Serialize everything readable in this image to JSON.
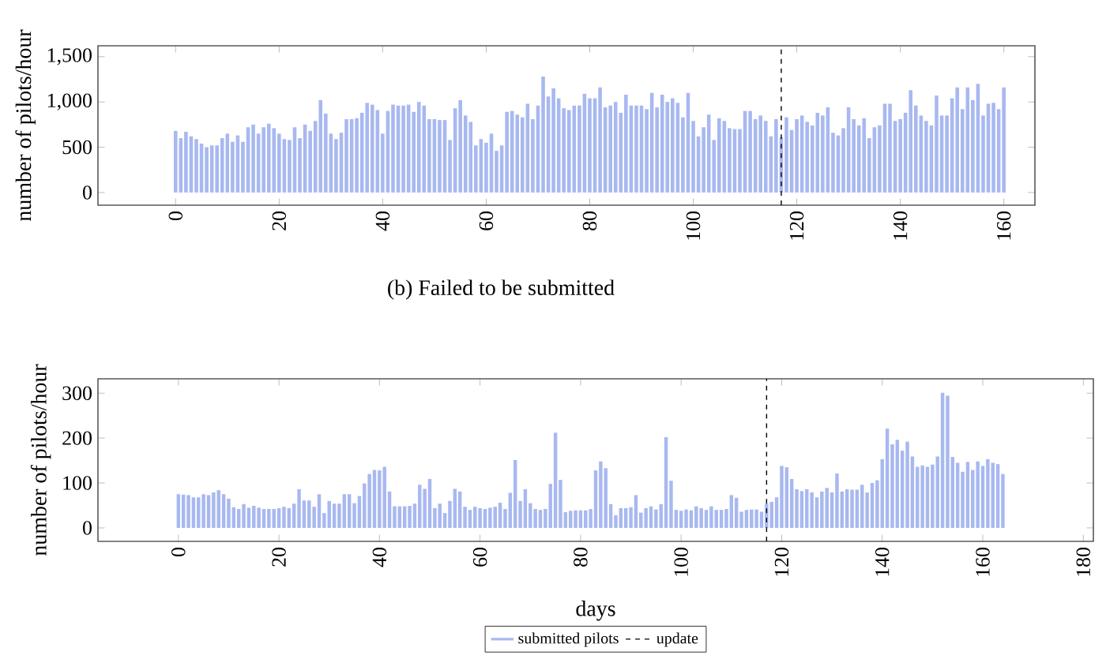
{
  "chart_data": [
    {
      "type": "bar",
      "ylabel": "number of pilots/hour",
      "annotations": [
        "(b) Failed to be submitted"
      ],
      "xlim": [
        -15,
        166
      ],
      "xticks": [
        0,
        20,
        40,
        60,
        80,
        100,
        120,
        140,
        160
      ],
      "ylim": [
        -140,
        1620
      ],
      "yticks": [
        0,
        500,
        {
          "value": 1000,
          "label": "1,000"
        },
        {
          "value": 1500,
          "label": "1,500"
        }
      ],
      "ref_lines": [
        {
          "axis": "x",
          "value": 117,
          "color": "#000000",
          "line_style": "dashed"
        }
      ],
      "series": [
        {
          "color": "#a8b8f0",
          "x": [
            0,
            1,
            2,
            3,
            4,
            5,
            6,
            7,
            8,
            9,
            10,
            11,
            12,
            13,
            14,
            15,
            16,
            17,
            18,
            19,
            20,
            21,
            22,
            23,
            24,
            25,
            26,
            27,
            28,
            29,
            30,
            31,
            32,
            33,
            34,
            35,
            36,
            37,
            38,
            39,
            40,
            41,
            42,
            43,
            44,
            45,
            46,
            47,
            48,
            49,
            50,
            51,
            52,
            53,
            54,
            55,
            56,
            57,
            58,
            59,
            60,
            61,
            62,
            63,
            64,
            65,
            66,
            67,
            68,
            69,
            70,
            71,
            72,
            73,
            74,
            75,
            76,
            77,
            78,
            79,
            80,
            81,
            82,
            83,
            84,
            85,
            86,
            87,
            88,
            89,
            90,
            91,
            92,
            93,
            94,
            95,
            96,
            97,
            98,
            99,
            100,
            101,
            102,
            103,
            104,
            105,
            106,
            107,
            108,
            109,
            110,
            111,
            112,
            113,
            114,
            115,
            116,
            117,
            118,
            119,
            120,
            121,
            122,
            123,
            124,
            125,
            126,
            127,
            128,
            129,
            130,
            131,
            132,
            133,
            134,
            135,
            136,
            137,
            138,
            139,
            140,
            141,
            142,
            143,
            144,
            145,
            146,
            147,
            148,
            149,
            150,
            151,
            152,
            153,
            154,
            155,
            156,
            157,
            158,
            159,
            160
          ],
          "values": [
            680,
            600,
            670,
            620,
            590,
            540,
            500,
            520,
            520,
            600,
            650,
            560,
            630,
            560,
            720,
            750,
            650,
            720,
            760,
            710,
            650,
            590,
            580,
            720,
            600,
            750,
            680,
            790,
            1020,
            870,
            650,
            590,
            660,
            810,
            810,
            820,
            880,
            990,
            970,
            910,
            650,
            900,
            970,
            960,
            960,
            970,
            890,
            1000,
            960,
            810,
            810,
            800,
            800,
            580,
            930,
            1020,
            850,
            780,
            520,
            590,
            550,
            650,
            460,
            520,
            890,
            900,
            860,
            830,
            980,
            810,
            960,
            1280,
            1060,
            1150,
            1040,
            930,
            910,
            960,
            960,
            1090,
            1040,
            1040,
            1160,
            940,
            960,
            1000,
            880,
            1080,
            960,
            960,
            960,
            920,
            1100,
            940,
            1080,
            1000,
            1040,
            990,
            830,
            1100,
            790,
            620,
            720,
            860,
            580,
            820,
            790,
            710,
            700,
            700,
            900,
            900,
            810,
            850,
            790,
            620,
            810,
            610,
            830,
            690,
            810,
            850,
            780,
            740,
            880,
            850,
            940,
            660,
            630,
            710,
            940,
            810,
            740,
            820,
            600,
            720,
            740,
            980,
            980,
            790,
            810,
            880,
            1130,
            960,
            850,
            790,
            740,
            1070,
            850,
            850,
            1040,
            1160,
            920,
            1160,
            1020,
            1200,
            850,
            980,
            990,
            920,
            1160
          ]
        }
      ]
    },
    {
      "type": "bar",
      "ylabel": "number of pilots/hour",
      "xlabel": "days",
      "legend": "bottom",
      "xlim": [
        -16,
        182
      ],
      "xticks": [
        0,
        20,
        40,
        60,
        80,
        100,
        120,
        140,
        160,
        180
      ],
      "ylim": [
        -30,
        332
      ],
      "yticks": [
        0,
        100,
        200,
        300
      ],
      "ref_lines": [
        {
          "axis": "x",
          "value": 117,
          "label": "update",
          "color": "#000000",
          "line_style": "dashed"
        }
      ],
      "series": [
        {
          "name": "submitted pilots",
          "color": "#a8b8f0",
          "x": [
            0,
            1,
            2,
            3,
            4,
            5,
            6,
            7,
            8,
            9,
            10,
            11,
            12,
            13,
            14,
            15,
            16,
            17,
            18,
            19,
            20,
            21,
            22,
            23,
            24,
            25,
            26,
            27,
            28,
            29,
            30,
            31,
            32,
            33,
            34,
            35,
            36,
            37,
            38,
            39,
            40,
            41,
            42,
            43,
            44,
            45,
            46,
            47,
            48,
            49,
            50,
            51,
            52,
            53,
            54,
            55,
            56,
            57,
            58,
            59,
            60,
            61,
            62,
            63,
            64,
            65,
            66,
            67,
            68,
            69,
            70,
            71,
            72,
            73,
            74,
            75,
            76,
            77,
            78,
            79,
            80,
            81,
            82,
            83,
            84,
            85,
            86,
            87,
            88,
            89,
            90,
            91,
            92,
            93,
            94,
            95,
            96,
            97,
            98,
            99,
            100,
            101,
            102,
            103,
            104,
            105,
            106,
            107,
            108,
            109,
            110,
            111,
            112,
            113,
            114,
            115,
            116,
            117,
            118,
            119,
            120,
            121,
            122,
            123,
            124,
            125,
            126,
            127,
            128,
            129,
            130,
            131,
            132,
            133,
            134,
            135,
            136,
            137,
            138,
            139,
            140,
            141,
            142,
            143,
            144,
            145,
            146,
            147,
            148,
            149,
            150,
            151,
            152,
            153,
            154,
            155,
            156,
            157,
            158,
            159,
            160,
            161,
            162,
            163,
            164
          ],
          "values": [
            75,
            74,
            73,
            68,
            68,
            75,
            73,
            79,
            84,
            75,
            65,
            46,
            42,
            53,
            45,
            49,
            45,
            42,
            42,
            42,
            44,
            47,
            44,
            54,
            86,
            61,
            61,
            47,
            75,
            33,
            60,
            54,
            54,
            75,
            75,
            55,
            71,
            99,
            120,
            129,
            128,
            136,
            81,
            48,
            48,
            48,
            49,
            54,
            96,
            87,
            109,
            44,
            54,
            33,
            60,
            87,
            81,
            47,
            40,
            47,
            44,
            42,
            45,
            47,
            56,
            42,
            78,
            151,
            60,
            86,
            55,
            42,
            40,
            42,
            98,
            212,
            107,
            35,
            38,
            39,
            39,
            39,
            42,
            128,
            148,
            133,
            53,
            28,
            44,
            44,
            46,
            73,
            34,
            44,
            48,
            41,
            53,
            202,
            105,
            40,
            38,
            41,
            39,
            48,
            44,
            40,
            48,
            40,
            40,
            42,
            73,
            67,
            36,
            40,
            41,
            41,
            36,
            54,
            58,
            68,
            138,
            135,
            109,
            86,
            82,
            86,
            79,
            68,
            81,
            89,
            79,
            121,
            81,
            86,
            85,
            85,
            96,
            79,
            100,
            106,
            153,
            221,
            186,
            196,
            172,
            192,
            159,
            136,
            139,
            136,
            141,
            159,
            301,
            294,
            158,
            145,
            125,
            147,
            129,
            148,
            138,
            153,
            145,
            142,
            120
          ]
        }
      ]
    }
  ]
}
